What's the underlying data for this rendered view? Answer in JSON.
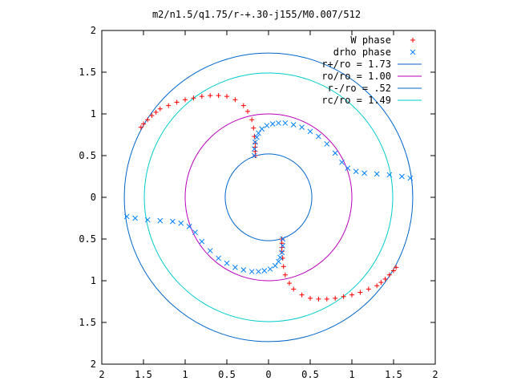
{
  "chart_data": {
    "type": "scatter",
    "title": "m2/n1.5/q1.75/r-+.30-j155/M0.007/512",
    "xlim": [
      -2,
      2
    ],
    "ylim": [
      -2,
      2
    ],
    "x_ticks": [
      {
        "value": -2,
        "label": "2"
      },
      {
        "value": -1.5,
        "label": "1.5"
      },
      {
        "value": -1,
        "label": "1"
      },
      {
        "value": -0.5,
        "label": "0.5"
      },
      {
        "value": 0,
        "label": "0"
      },
      {
        "value": 0.5,
        "label": "0.5"
      },
      {
        "value": 1,
        "label": "1"
      },
      {
        "value": 1.5,
        "label": "1.5"
      },
      {
        "value": 2,
        "label": "2"
      }
    ],
    "y_ticks": [
      {
        "value": 2,
        "label": "2"
      },
      {
        "value": 1.5,
        "label": "1.5"
      },
      {
        "value": 1,
        "label": "1"
      },
      {
        "value": 0.5,
        "label": "0.5"
      },
      {
        "value": 0,
        "label": "0"
      },
      {
        "value": -0.5,
        "label": "0.5"
      },
      {
        "value": -1,
        "label": "1"
      },
      {
        "value": -1.5,
        "label": "1.5"
      },
      {
        "value": -2,
        "label": "2"
      }
    ],
    "grid": false,
    "legend_position": "top-right",
    "series": [
      {
        "name": "W phase",
        "marker": "plus",
        "color": "#ff0000",
        "x": [
          -1.53,
          -1.5,
          -1.45,
          -1.4,
          -1.35,
          -1.3,
          -1.2,
          -1.1,
          -1.0,
          -0.9,
          -0.8,
          -0.7,
          -0.6,
          -0.5,
          -0.4,
          -0.3,
          -0.25,
          -0.2,
          -0.18,
          -0.17,
          -0.16,
          -0.16,
          -0.16,
          -0.16,
          1.53,
          1.5,
          1.45,
          1.4,
          1.35,
          1.3,
          1.2,
          1.1,
          1.0,
          0.9,
          0.8,
          0.7,
          0.6,
          0.5,
          0.4,
          0.3,
          0.25,
          0.2,
          0.18,
          0.17,
          0.16,
          0.16,
          0.16,
          0.16
        ],
        "y": [
          0.84,
          0.88,
          0.93,
          0.98,
          1.02,
          1.06,
          1.1,
          1.14,
          1.17,
          1.19,
          1.21,
          1.22,
          1.22,
          1.21,
          1.17,
          1.1,
          1.03,
          0.93,
          0.83,
          0.73,
          0.65,
          0.6,
          0.55,
          0.5,
          -0.84,
          -0.88,
          -0.93,
          -0.98,
          -1.02,
          -1.06,
          -1.1,
          -1.14,
          -1.17,
          -1.19,
          -1.21,
          -1.22,
          -1.22,
          -1.21,
          -1.17,
          -1.1,
          -1.03,
          -0.93,
          -0.83,
          -0.73,
          -0.65,
          -0.6,
          -0.55,
          -0.5
        ]
      },
      {
        "name": "drho phase",
        "marker": "cross",
        "color": "#0080ff",
        "x": [
          -0.17,
          -0.17,
          -0.16,
          -0.14,
          -0.12,
          -0.08,
          -0.02,
          0.05,
          0.12,
          0.2,
          0.3,
          0.4,
          0.5,
          0.6,
          0.7,
          0.8,
          0.88,
          0.95,
          1.05,
          1.15,
          1.3,
          1.45,
          1.6,
          1.7,
          0.17,
          0.17,
          0.16,
          0.14,
          0.12,
          0.08,
          0.02,
          -0.05,
          -0.12,
          -0.2,
          -0.3,
          -0.4,
          -0.5,
          -0.6,
          -0.7,
          -0.8,
          -0.88,
          -0.95,
          -1.05,
          -1.15,
          -1.3,
          -1.45,
          -1.6,
          -1.7
        ],
        "y": [
          0.5,
          0.58,
          0.66,
          0.72,
          0.77,
          0.82,
          0.86,
          0.88,
          0.89,
          0.89,
          0.87,
          0.84,
          0.79,
          0.73,
          0.64,
          0.53,
          0.42,
          0.35,
          0.31,
          0.29,
          0.28,
          0.27,
          0.25,
          0.23,
          -0.5,
          -0.58,
          -0.66,
          -0.72,
          -0.77,
          -0.82,
          -0.86,
          -0.88,
          -0.89,
          -0.89,
          -0.87,
          -0.84,
          -0.79,
          -0.73,
          -0.64,
          -0.53,
          -0.42,
          -0.35,
          -0.31,
          -0.29,
          -0.28,
          -0.27,
          -0.25,
          -0.23
        ]
      }
    ],
    "circles": [
      {
        "name": "r+/ro = 1.73",
        "radius": 1.73,
        "color": "#0066cc"
      },
      {
        "name": "ro/ro = 1.00",
        "radius": 1.0,
        "color": "#bb00bb"
      },
      {
        "name": "r-/ro = .52",
        "radius": 0.52,
        "color": "#0066cc"
      },
      {
        "name": "rc/ro = 1.49",
        "radius": 1.49,
        "color": "#00cccc"
      }
    ]
  }
}
